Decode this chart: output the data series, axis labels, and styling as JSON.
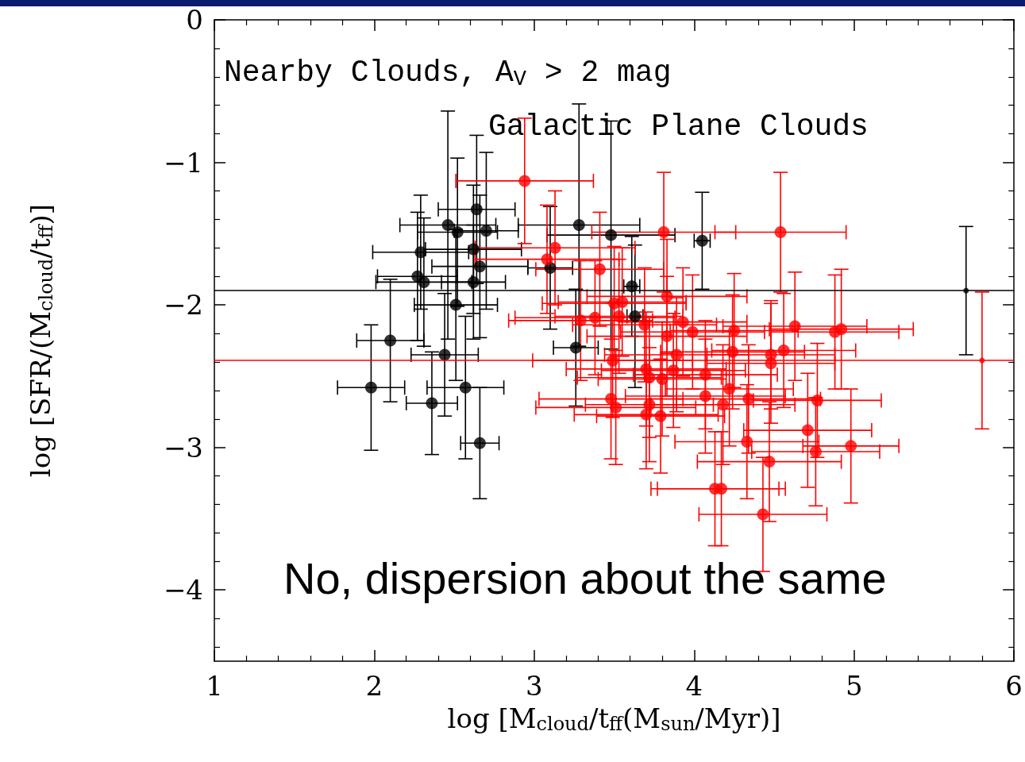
{
  "chart_data": {
    "type": "scatter",
    "xlabel": "log [M$_{cloud}$/t$_{ff}$(M$_{sun}$/Myr)]",
    "ylabel": "log [SFR/(M$_{cloud}$/t$_{ff}$)]",
    "annotations": [
      "Nearby Clouds, A$_{V}$ > 2 mag",
      "Galactic Plane Clouds",
      "No, dispersion about the same"
    ],
    "xlim": [
      1,
      6
    ],
    "xticks": [
      1,
      2,
      3,
      4,
      5,
      6
    ],
    "ylim": [
      -4.5,
      0
    ],
    "yticks": [
      -4,
      -3,
      -2,
      -1,
      0
    ],
    "grid": false,
    "marker": "circle",
    "ref_lines": [
      {
        "axis": "y",
        "value": -1.9,
        "color": "#000000"
      },
      {
        "axis": "y",
        "value": -2.39,
        "color": "#ff0000"
      }
    ],
    "series": [
      {
        "color": "#000000",
        "x": [
          1.98,
          2.1,
          2.27,
          2.29,
          2.31,
          2.36,
          2.44,
          2.46,
          2.52,
          2.51,
          2.57,
          2.62,
          2.62,
          2.64,
          2.66,
          2.66,
          2.7,
          3.1,
          3.28,
          3.26,
          3.48,
          3.61,
          3.63,
          4.05
        ],
        "values": [
          -2.58,
          -2.25,
          -1.8,
          -1.63,
          -1.84,
          -2.69,
          -2.35,
          -1.44,
          -1.49,
          -2.0,
          -2.58,
          -1.84,
          -1.61,
          -1.33,
          -1.73,
          -2.97,
          -1.48,
          -1.74,
          -1.44,
          -2.3,
          -1.51,
          -1.87,
          -2.08,
          -1.55
        ],
        "xerrors": [
          0.21,
          0.21,
          0.25,
          0.3,
          0.3,
          0.16,
          0.21,
          0.3,
          0.25,
          0.26,
          0.24,
          0.2,
          0.3,
          0.24,
          0.3,
          0.12,
          0.2,
          0.14,
          0.38,
          0.14,
          0.4,
          0.05,
          0.05,
          0.05
        ],
        "errors": [
          0.44,
          0.43,
          0.45,
          0.4,
          0.45,
          0.36,
          0.43,
          0.8,
          0.52,
          0.53,
          0.5,
          0.4,
          0.45,
          0.52,
          0.5,
          0.39,
          0.55,
          0.43,
          0.85,
          0.41,
          0.8,
          0.35,
          0.5,
          0.34
        ]
      },
      {
        "color": "#ff0000",
        "x": [
          2.94,
          3.13,
          3.08,
          3.41,
          3.81,
          4.54,
          3.5,
          3.55,
          3.38,
          3.29,
          3.53,
          3.69,
          3.83,
          3.93,
          3.99,
          3.83,
          3.89,
          4.25,
          4.63,
          4.88,
          4.92,
          3.49,
          4.24,
          4.48,
          4.56,
          4.48,
          3.87,
          3.7,
          4.07,
          3.8,
          3.72,
          4.22,
          4.07,
          4.34,
          4.77,
          3.48,
          3.51,
          3.72,
          3.7,
          3.79,
          4.18,
          4.71,
          4.33,
          4.76,
          4.98,
          4.47,
          4.13,
          4.17,
          4.43
        ],
        "values": [
          -1.13,
          -1.6,
          -1.68,
          -1.75,
          -1.49,
          -1.49,
          -1.99,
          -1.98,
          -2.09,
          -2.11,
          -2.08,
          -2.14,
          -1.94,
          -2.12,
          -2.19,
          -2.22,
          -2.35,
          -2.18,
          -2.15,
          -2.19,
          -2.17,
          -2.39,
          -2.33,
          -2.35,
          -2.32,
          -2.41,
          -2.46,
          -2.45,
          -2.49,
          -2.52,
          -2.51,
          -2.59,
          -2.64,
          -2.66,
          -2.67,
          -2.66,
          -2.72,
          -2.7,
          -2.77,
          -2.78,
          -2.7,
          -2.88,
          -2.96,
          -3.03,
          -2.99,
          -3.1,
          -3.29,
          -3.29,
          -3.47
        ],
        "xerrors": [
          0.43,
          0.5,
          0.45,
          0.4,
          0.45,
          0.41,
          0.45,
          0.4,
          0.5,
          0.45,
          0.4,
          0.45,
          0.5,
          0.4,
          0.45,
          0.5,
          0.45,
          0.4,
          0.45,
          0.4,
          0.45,
          0.5,
          0.45,
          0.4,
          0.45,
          0.4,
          0.45,
          0.5,
          0.45,
          0.4,
          0.45,
          0.4,
          0.5,
          0.45,
          0.4,
          0.45,
          0.5,
          0.4,
          0.45,
          0.4,
          0.45,
          0.4,
          0.45,
          0.4,
          0.3,
          0.45,
          0.4,
          0.4,
          0.4
        ],
        "errors": [
          0.44,
          0.4,
          0.38,
          0.4,
          0.42,
          0.42,
          0.4,
          0.38,
          0.4,
          0.42,
          0.4,
          0.4,
          0.4,
          0.38,
          0.4,
          0.42,
          0.4,
          0.4,
          0.38,
          0.4,
          0.42,
          0.4,
          0.4,
          0.38,
          0.4,
          0.42,
          0.4,
          0.4,
          0.38,
          0.4,
          0.42,
          0.4,
          0.4,
          0.38,
          0.4,
          0.42,
          0.4,
          0.4,
          0.38,
          0.4,
          0.42,
          0.4,
          0.4,
          0.38,
          0.4,
          0.42,
          0.4,
          0.4,
          0.4
        ]
      },
      {
        "color": "#000000",
        "marker": "none",
        "x": [
          5.7
        ],
        "values": [
          -1.9
        ],
        "errors": [
          0.45
        ]
      },
      {
        "color": "#ff0000",
        "marker": "none",
        "x": [
          5.8
        ],
        "values": [
          -2.39
        ],
        "errors": [
          0.48
        ]
      }
    ]
  }
}
